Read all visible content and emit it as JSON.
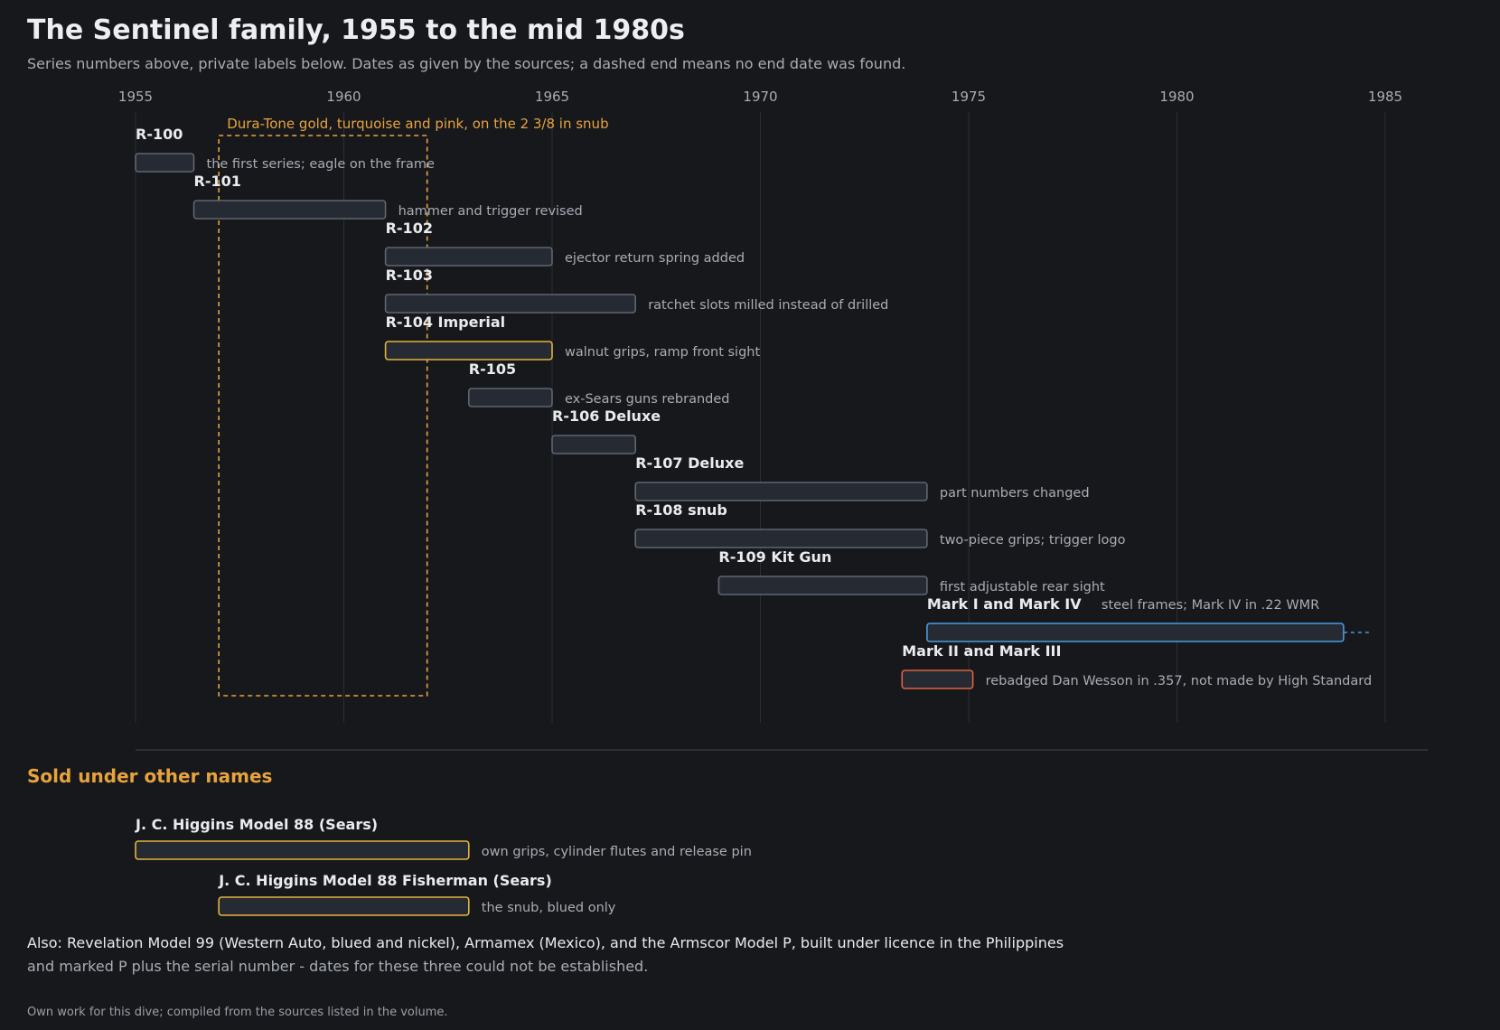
{
  "title": "The Sentinel family, 1955 to the mid 1980s",
  "subtitle": "Series numbers above, private labels below. Dates as given by the sources; a dashed end means no end date was found.",
  "colors": {
    "background": "#16181c",
    "bar_fill": "#262b33",
    "bar_stroke_default": "#5f6672",
    "bar_stroke_highlight": "#e3b43c",
    "bar_stroke_blue": "#4a9be0",
    "bar_stroke_red": "#e0623f",
    "accent_orange": "#e8a33d",
    "gridline": "#2b2f35",
    "axis_text": "#a8adb4",
    "label_text": "#e9ebee",
    "note_text": "#a8adb4"
  },
  "chart_data": {
    "type": "timeline",
    "x_ticks": [
      1955,
      1960,
      1965,
      1970,
      1975,
      1980,
      1985
    ],
    "x_range": [
      1955,
      1985
    ],
    "grid": true,
    "highlight_span": {
      "label": "Dura-Tone gold, turquoise and pink, on the 2 3/8 in snub",
      "start": 1957,
      "end": 1962
    },
    "series": [
      {
        "name": "R-100",
        "start": 1955,
        "end": 1956.4,
        "note": "the first series; eagle on the frame",
        "style": "default"
      },
      {
        "name": "R-101",
        "start": 1956.4,
        "end": 1961,
        "note": "hammer and trigger revised",
        "style": "default"
      },
      {
        "name": "R-102",
        "start": 1961,
        "end": 1965,
        "note": "ejector return spring added",
        "style": "default"
      },
      {
        "name": "R-103",
        "start": 1961,
        "end": 1967,
        "note": "ratchet slots milled instead of drilled",
        "style": "default"
      },
      {
        "name": "R-104 Imperial",
        "start": 1961,
        "end": 1965,
        "note": "walnut grips, ramp front sight",
        "style": "highlight"
      },
      {
        "name": "R-105",
        "start": 1963,
        "end": 1965,
        "note": "ex-Sears guns rebranded",
        "style": "default"
      },
      {
        "name": "R-106 Deluxe",
        "start": 1965,
        "end": 1967,
        "note": "",
        "style": "default"
      },
      {
        "name": "R-107 Deluxe",
        "start": 1967,
        "end": 1974,
        "note": "part numbers changed",
        "style": "default"
      },
      {
        "name": "R-108 snub",
        "start": 1967,
        "end": 1974,
        "note": "two-piece grips; trigger logo",
        "style": "default"
      },
      {
        "name": "R-109 Kit Gun",
        "start": 1969,
        "end": 1974,
        "note": "first adjustable rear sight",
        "style": "default"
      },
      {
        "name": "Mark I and Mark IV",
        "start": 1974,
        "end": 1984,
        "open_end": true,
        "note": "steel frames; Mark IV in .22 WMR",
        "style": "blue"
      },
      {
        "name": "Mark II and Mark III",
        "start": 1973.4,
        "end": 1975.1,
        "note": "rebadged Dan Wesson in .357, not made by High Standard",
        "style": "red"
      }
    ],
    "other_names": [
      {
        "name": "J. C. Higgins Model 88 (Sears)",
        "start": 1955,
        "end": 1963,
        "note": "own grips, cylinder flutes and release pin"
      },
      {
        "name": "J. C. Higgins Model 88 Fisherman (Sears)",
        "start": 1957,
        "end": 1963,
        "note": "the snub, blued only"
      }
    ]
  },
  "other_section_title": "Sold under other names",
  "also_line1": "Also: Revelation Model 99 (Western Auto, blued and nickel), Armamex (Mexico), and the Armscor Model P, built under licence in the Philippines",
  "also_line2": "and marked P plus the serial number - dates for these three could not be established.",
  "footer": "Own work for this dive; compiled from the sources listed in the volume."
}
